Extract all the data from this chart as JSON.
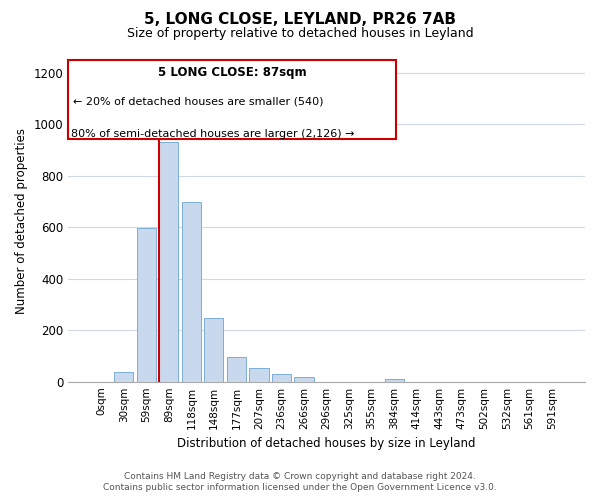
{
  "title": "5, LONG CLOSE, LEYLAND, PR26 7AB",
  "subtitle": "Size of property relative to detached houses in Leyland",
  "xlabel": "Distribution of detached houses by size in Leyland",
  "ylabel": "Number of detached properties",
  "bar_labels": [
    "0sqm",
    "30sqm",
    "59sqm",
    "89sqm",
    "118sqm",
    "148sqm",
    "177sqm",
    "207sqm",
    "236sqm",
    "266sqm",
    "296sqm",
    "325sqm",
    "355sqm",
    "384sqm",
    "414sqm",
    "443sqm",
    "473sqm",
    "502sqm",
    "532sqm",
    "561sqm",
    "591sqm"
  ],
  "bar_values": [
    0,
    38,
    598,
    930,
    700,
    247,
    95,
    55,
    28,
    18,
    0,
    0,
    0,
    10,
    0,
    0,
    0,
    0,
    0,
    0,
    0
  ],
  "bar_color": "#c9d9ed",
  "bar_edge_color": "#7bafd4",
  "vline_color": "#cc0000",
  "vline_x_index": 3,
  "ylim": [
    0,
    1250
  ],
  "yticks": [
    0,
    200,
    400,
    600,
    800,
    1000,
    1200
  ],
  "annotation_title": "5 LONG CLOSE: 87sqm",
  "annotation_line1": "← 20% of detached houses are smaller (540)",
  "annotation_line2": "80% of semi-detached houses are larger (2,126) →",
  "box_edge_color": "#cc0000",
  "footer_line1": "Contains HM Land Registry data © Crown copyright and database right 2024.",
  "footer_line2": "Contains public sector information licensed under the Open Government Licence v3.0.",
  "background_color": "#ffffff",
  "grid_color": "#d0d8e4"
}
